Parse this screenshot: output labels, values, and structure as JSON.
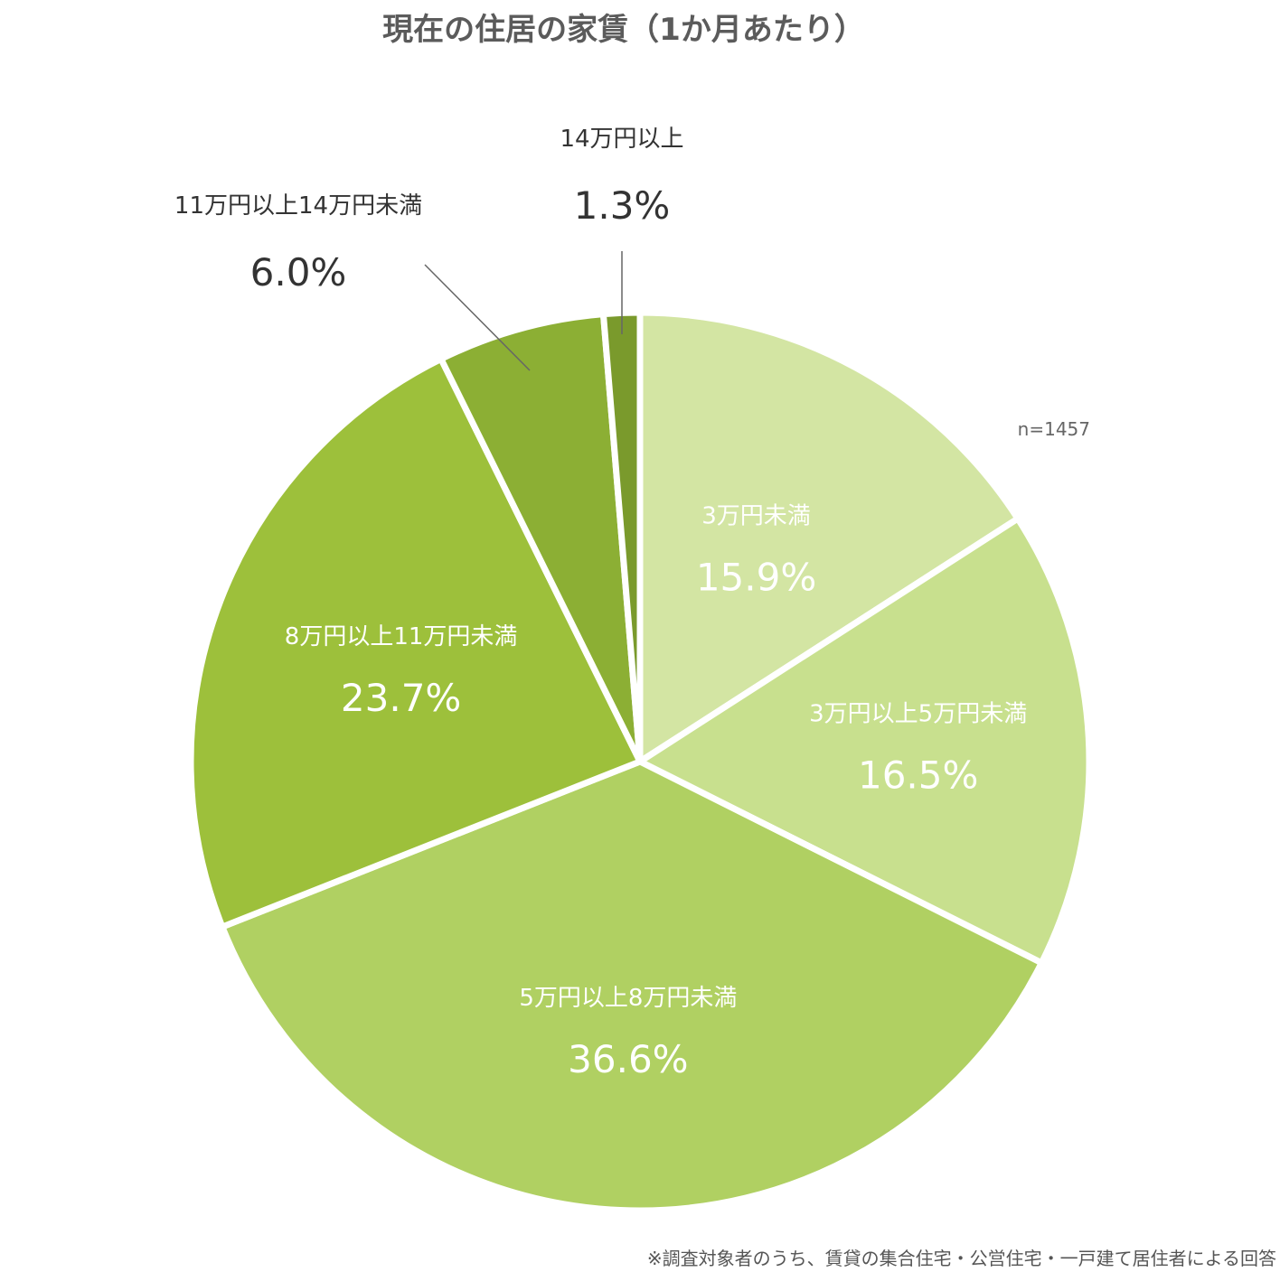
{
  "chart_data": {
    "type": "pie",
    "title": "現在の住居の家賃（1か月あたり）",
    "n_label": "n=1457",
    "footnote": "※調査対象者のうち、賃貸の集合住宅・公営住宅・一戸建て居住者による回答",
    "slices": [
      {
        "label": "3万円未満",
        "value": 15.9,
        "value_label": "15.9%",
        "color": "#d3e5a3",
        "label_position": "inside"
      },
      {
        "label": "3万円以上5万円未満",
        "value": 16.5,
        "value_label": "16.5%",
        "color": "#c8e08e",
        "label_position": "inside"
      },
      {
        "label": "5万円以上8万円未満",
        "value": 36.6,
        "value_label": "36.6%",
        "color": "#b0d062",
        "label_position": "inside"
      },
      {
        "label": "8万円以上11万円未満",
        "value": 23.7,
        "value_label": "23.7%",
        "color": "#9dc03b",
        "label_position": "inside"
      },
      {
        "label": "11万円以上14万円未満",
        "value": 6.0,
        "value_label": "6.0%",
        "color": "#8caf34",
        "label_position": "outside"
      },
      {
        "label": "14万円以上",
        "value": 1.3,
        "value_label": "1.3%",
        "color": "#7a9a2c",
        "label_position": "outside"
      }
    ],
    "start": "12 o'clock",
    "direction": "clockwise",
    "legend": "none"
  }
}
